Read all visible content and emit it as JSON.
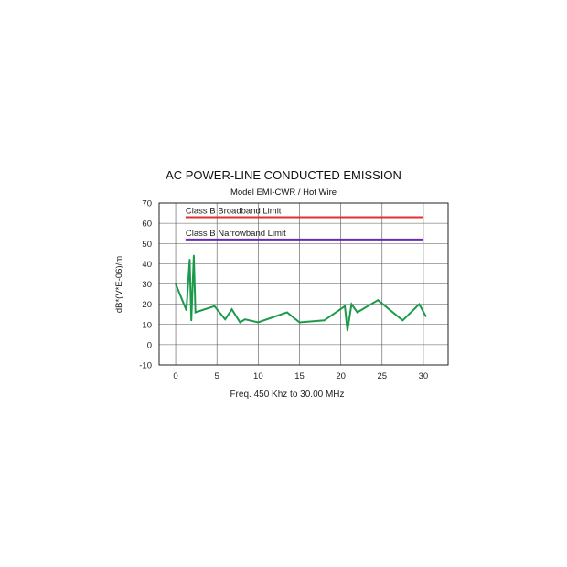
{
  "chart_data": {
    "type": "line",
    "title": "AC POWER-LINE CONDUCTED EMISSION",
    "subtitle": "Model EMI-CWR / Hot Wire",
    "xlabel": "Freq. 450 Khz to 30.00 MHz",
    "ylabel": "dB*(V*E-06)/m",
    "xlim": [
      -2,
      33
    ],
    "ylim": [
      -10,
      70
    ],
    "xticks": [
      0,
      5,
      10,
      15,
      20,
      25,
      30
    ],
    "yticks": [
      -10,
      0,
      10,
      20,
      30,
      40,
      50,
      60,
      70
    ],
    "grid": true,
    "limits": [
      {
        "label": "Class B Broadband Limit",
        "value": 63,
        "x_start": 1.2,
        "x_end": 30,
        "color": "#e03030"
      },
      {
        "label": "Class B Narrowband Limit",
        "value": 52,
        "x_start": 1.2,
        "x_end": 30,
        "color": "#6a2bb8"
      }
    ],
    "series": [
      {
        "color": "#1a9a4a",
        "x": [
          0,
          1.3,
          1.7,
          1.9,
          2.2,
          2.4,
          4.7,
          6.0,
          6.8,
          7.8,
          8.4,
          10.0,
          13.5,
          15.0,
          18.0,
          20.5,
          20.8,
          21.3,
          22.0,
          24.5,
          27.5,
          29.5,
          30.3
        ],
        "y": [
          30,
          17,
          42,
          12,
          44,
          16,
          19,
          12.5,
          17.5,
          11,
          12.5,
          11,
          16,
          11,
          12,
          19,
          7,
          20,
          16,
          22,
          12,
          20,
          14
        ]
      }
    ]
  }
}
